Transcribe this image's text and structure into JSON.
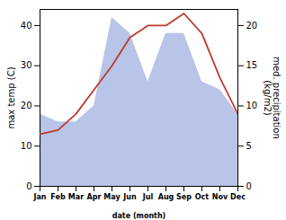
{
  "chart_data": {
    "type": "line",
    "xlabel": "date (month)",
    "ylabel": "max temp (C)",
    "y2label": "med. precipitation\n(kg/m2)",
    "categories": [
      "Jan",
      "Feb",
      "Mar",
      "Apr",
      "May",
      "Jun",
      "Jul",
      "Aug",
      "Sep",
      "Oct",
      "Nov",
      "Dec"
    ],
    "series": [
      {
        "type": "area",
        "axis": "y2",
        "color": "#b8c4e8",
        "values": [
          9,
          8,
          8,
          10,
          21,
          19,
          13,
          19,
          19,
          13,
          12,
          9
        ]
      },
      {
        "type": "line",
        "color": "#c0392b",
        "values": [
          13,
          14,
          18,
          24,
          30,
          37,
          40,
          40,
          43,
          38,
          27,
          18
        ]
      }
    ],
    "ylim": [
      0,
      44
    ],
    "yticks": [
      0,
      10,
      20,
      30,
      40
    ],
    "y2lim": [
      0,
      22
    ],
    "y2ticks": [
      0,
      5,
      10,
      15,
      20
    ],
    "grid": false
  }
}
